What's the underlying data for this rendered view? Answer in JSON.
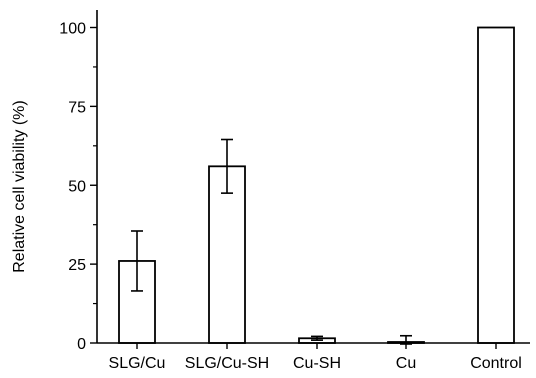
{
  "chart_data": {
    "type": "bar",
    "title": "",
    "xlabel": "",
    "ylabel": "Relative cell viability (%)",
    "ylim": [
      0,
      105
    ],
    "yticks": [
      0,
      25,
      50,
      75,
      100
    ],
    "categories": [
      "SLG/Cu",
      "SLG/Cu-SH",
      "Cu-SH",
      "Cu",
      "Control"
    ],
    "values": [
      26,
      56,
      1.5,
      0.3,
      100
    ],
    "errors": [
      9.5,
      8.5,
      0.6,
      2.0,
      0
    ],
    "grid": false,
    "legend": "none",
    "bar_fill": "#ffffff",
    "bar_stroke": "#000000"
  }
}
